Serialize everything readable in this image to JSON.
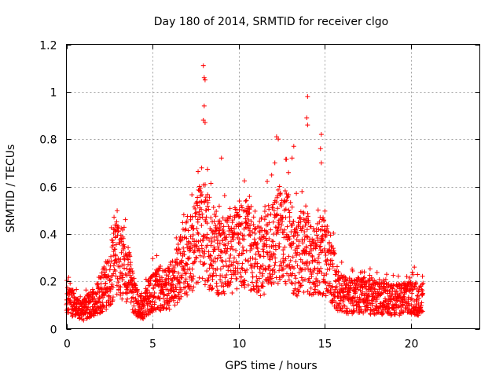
{
  "chart_data": {
    "type": "scatter",
    "title": "Day 180 of 2014, SRMTID for receiver clgo",
    "xlabel": "GPS time / hours",
    "ylabel": "SRMTID / TECUs",
    "xlim": [
      0,
      24
    ],
    "ylim": [
      0,
      1.2
    ],
    "x_ticks": [
      0,
      5,
      10,
      15,
      20
    ],
    "x_tick_labels": [
      "0",
      "5",
      "10",
      "15",
      "20"
    ],
    "y_ticks": [
      0,
      0.2,
      0.4,
      0.6,
      0.8,
      1.0,
      1.2
    ],
    "y_tick_labels": [
      "0",
      "0.2",
      "0.4",
      "0.6",
      "0.8",
      "1",
      "1.2"
    ],
    "grid": true,
    "marker": "+",
    "color": "#ff0000",
    "series": [
      {
        "name": "SRMTID",
        "profile": {
          "hours": [
            0,
            0.5,
            1.0,
            1.5,
            2.0,
            2.5,
            2.8,
            3.2,
            3.6,
            4.0,
            4.4,
            4.8,
            5.2,
            5.8,
            6.3,
            6.8,
            7.3,
            7.8,
            8.3,
            8.8,
            9.3,
            9.8,
            10.3,
            10.8,
            11.3,
            11.8,
            12.3,
            12.8,
            13.3,
            13.8,
            14.3,
            14.8,
            15.3,
            15.8,
            16.3,
            17.0,
            18.0,
            19.0,
            20.0,
            20.7
          ],
          "median": [
            0.12,
            0.1,
            0.08,
            0.11,
            0.15,
            0.2,
            0.3,
            0.28,
            0.22,
            0.12,
            0.08,
            0.14,
            0.17,
            0.16,
            0.2,
            0.3,
            0.32,
            0.4,
            0.36,
            0.3,
            0.32,
            0.34,
            0.36,
            0.33,
            0.3,
            0.35,
            0.4,
            0.38,
            0.3,
            0.32,
            0.28,
            0.32,
            0.26,
            0.16,
            0.14,
            0.14,
            0.13,
            0.12,
            0.13,
            0.12
          ]
        },
        "notable_points": [
          {
            "x": 7.95,
            "y": 1.11
          },
          {
            "x": 8.0,
            "y": 1.06
          },
          {
            "x": 8.05,
            "y": 1.05
          },
          {
            "x": 8.0,
            "y": 0.94
          },
          {
            "x": 7.95,
            "y": 0.88
          },
          {
            "x": 8.05,
            "y": 0.87
          },
          {
            "x": 14.0,
            "y": 0.98
          },
          {
            "x": 13.95,
            "y": 0.89
          },
          {
            "x": 14.0,
            "y": 0.86
          },
          {
            "x": 14.8,
            "y": 0.82
          },
          {
            "x": 12.2,
            "y": 0.81
          },
          {
            "x": 12.3,
            "y": 0.8
          },
          {
            "x": 13.2,
            "y": 0.77
          },
          {
            "x": 14.75,
            "y": 0.76
          },
          {
            "x": 14.8,
            "y": 0.7
          },
          {
            "x": 13.1,
            "y": 0.72
          },
          {
            "x": 12.1,
            "y": 0.7
          },
          {
            "x": 9.0,
            "y": 0.72
          },
          {
            "x": 2.75,
            "y": 0.42
          },
          {
            "x": 2.85,
            "y": 0.41
          },
          {
            "x": 20.2,
            "y": 0.26
          }
        ],
        "approx_count": 2500
      }
    ]
  }
}
